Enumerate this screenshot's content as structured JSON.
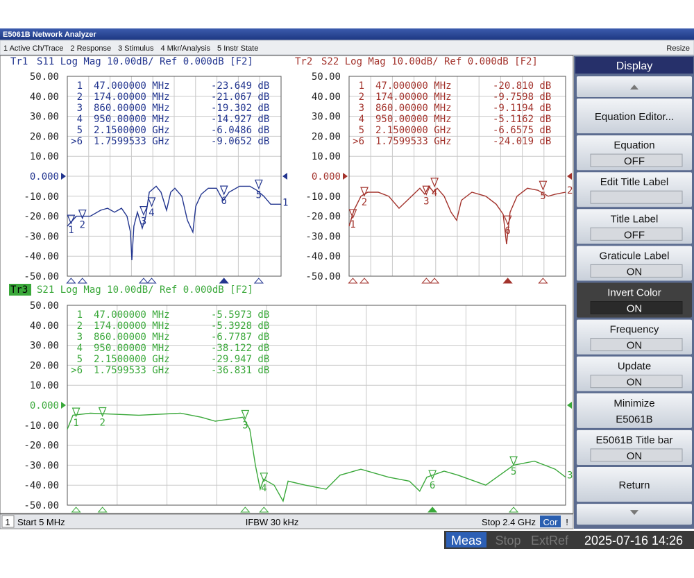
{
  "window": {
    "title": "E5061B Network Analyzer",
    "menu": [
      "1 Active Ch/Trace",
      "2 Response",
      "3 Stimulus",
      "4 Mkr/Analysis",
      "5 Instr State"
    ],
    "resize": "Resize"
  },
  "analyzer": {
    "xlim": [
      5,
      2400
    ],
    "traces": [
      {
        "label": "Tr1",
        "header": "S11 Log Mag 10.00dB/ Ref 0.000dB [F2]",
        "end_label": "1",
        "color": "#22358f",
        "ref": 0,
        "ylim": [
          -50,
          50
        ],
        "yticks": [
          {
            "value": 50,
            "label": "50.00"
          },
          {
            "value": 40,
            "label": "40.00"
          },
          {
            "value": 30,
            "label": "30.00"
          },
          {
            "value": 20,
            "label": "20.00"
          },
          {
            "value": 10,
            "label": "10.00"
          },
          {
            "value": 0,
            "label": "0.000"
          },
          {
            "value": -10,
            "label": "-10.00"
          },
          {
            "value": -20,
            "label": "-20.00"
          },
          {
            "value": -30,
            "label": "-30.00"
          },
          {
            "value": -40,
            "label": "-40.00"
          },
          {
            "value": -50,
            "label": "-50.00"
          }
        ],
        "x": [
          5,
          106,
          262,
          378,
          456,
          534,
          612,
          674,
          713,
          728,
          751,
          790,
          845,
          884,
          923,
          1000,
          1055,
          1117,
          1164,
          1210,
          1288,
          1350,
          1412,
          1444,
          1506,
          1584,
          1677,
          1724,
          1755,
          1817,
          1934,
          2050,
          2128,
          2206,
          2283,
          2400
        ],
        "values": [
          -25,
          -20,
          -20,
          -17,
          -16,
          -18,
          -16,
          -20,
          -28,
          -42,
          -25,
          -18,
          -26,
          -20,
          -8,
          -5,
          -8,
          -17,
          -8,
          -6,
          -10,
          -22,
          -28,
          -15,
          -9,
          -6,
          -6,
          -10,
          -12,
          -8,
          -5,
          -5,
          -7,
          -10,
          -14,
          -14
        ],
        "markers": [
          {
            "row_label": "1",
            "name": "1",
            "stimulus": "47.000000 MHz",
            "response": "-23.649 dB",
            "x": 47,
            "y": -23.649
          },
          {
            "row_label": "2",
            "name": "2",
            "stimulus": "174.00000 MHz",
            "response": "-21.067 dB",
            "x": 174,
            "y": -21.067
          },
          {
            "row_label": "3",
            "name": "3",
            "stimulus": "860.00000 MHz",
            "response": "-19.302 dB",
            "x": 860,
            "y": -19.302
          },
          {
            "row_label": "4",
            "name": "4",
            "stimulus": "950.00000 MHz",
            "response": "-14.927 dB",
            "x": 950,
            "y": -14.927
          },
          {
            "row_label": "5",
            "name": "5",
            "stimulus": "2.1500000 GHz",
            "response": "-6.0486 dB",
            "x": 2150,
            "y": -6.0486
          },
          {
            "row_label": ">6",
            "name": "6",
            "stimulus": "1.7599533 GHz",
            "response": "-9.0652 dB",
            "x": 1759.9533,
            "y": -9.0652,
            "active": true
          }
        ]
      },
      {
        "label": "Tr2",
        "header": "S22 Log Mag 10.00dB/ Ref 0.000dB [F2]",
        "end_label": "2",
        "color": "#a3332c",
        "ref": 0,
        "ylim": [
          -50,
          50
        ],
        "yticks": [
          {
            "value": 50,
            "label": "50.00"
          },
          {
            "value": 40,
            "label": "40.00"
          },
          {
            "value": 30,
            "label": "30.00"
          },
          {
            "value": 20,
            "label": "20.00"
          },
          {
            "value": 10,
            "label": "10.00"
          },
          {
            "value": 0,
            "label": "0.000"
          },
          {
            "value": -10,
            "label": "-10.00"
          },
          {
            "value": -20,
            "label": "-20.00"
          },
          {
            "value": -30,
            "label": "-30.00"
          },
          {
            "value": -40,
            "label": "-40.00"
          },
          {
            "value": -50,
            "label": "-50.00"
          }
        ],
        "x": [
          5,
          59,
          136,
          212,
          327,
          443,
          558,
          673,
          788,
          842,
          888,
          941,
          980,
          1057,
          1133,
          1195,
          1248,
          1364,
          1517,
          1632,
          1709,
          1747,
          1786,
          1863,
          1978,
          2093,
          2208,
          2285,
          2400
        ],
        "values": [
          -25,
          -17,
          -10,
          -8,
          -8,
          -10,
          -16,
          -11,
          -6,
          -9,
          -5,
          -8,
          -6,
          -10,
          -18,
          -22,
          -12,
          -8,
          -10,
          -14,
          -19,
          -34,
          -18,
          -10,
          -6,
          -7,
          -10,
          -9,
          -8
        ],
        "markers": [
          {
            "row_label": "1",
            "name": "1",
            "stimulus": "47.000000 MHz",
            "response": "-20.810 dB",
            "x": 47,
            "y": -20.81
          },
          {
            "row_label": "2",
            "name": "2",
            "stimulus": "174.00000 MHz",
            "response": "-9.7598 dB",
            "x": 174,
            "y": -9.7598
          },
          {
            "row_label": "3",
            "name": "3",
            "stimulus": "860.00000 MHz",
            "response": "-9.1194 dB",
            "x": 860,
            "y": -9.1194
          },
          {
            "row_label": "4",
            "name": "4",
            "stimulus": "950.00000 MHz",
            "response": "-5.1162 dB",
            "x": 950,
            "y": -5.1162
          },
          {
            "row_label": "5",
            "name": "5",
            "stimulus": "2.1500000 GHz",
            "response": "-6.6575 dB",
            "x": 2150,
            "y": -6.6575
          },
          {
            "row_label": ">6",
            "name": "6",
            "stimulus": "1.7599533 GHz",
            "response": "-24.019 dB",
            "x": 1759.9533,
            "y": -24.019,
            "active": true
          }
        ]
      },
      {
        "label": "Tr3",
        "header": "S21 Log Mag 10.00dB/ Ref 0.000dB [F2]",
        "end_label": "3",
        "color": "#3aa83a",
        "ref": 0,
        "ylim": [
          -50,
          50
        ],
        "selected": true,
        "yticks": [
          {
            "value": 50,
            "label": "50.00"
          },
          {
            "value": 40,
            "label": "40.00"
          },
          {
            "value": 30,
            "label": "30.00"
          },
          {
            "value": 20,
            "label": "20.00"
          },
          {
            "value": 10,
            "label": "10.00"
          },
          {
            "value": 0,
            "label": "0.000"
          },
          {
            "value": -10,
            "label": "-10.00"
          },
          {
            "value": -20,
            "label": "-20.00"
          },
          {
            "value": -30,
            "label": "-30.00"
          },
          {
            "value": -40,
            "label": "-40.00"
          },
          {
            "value": -50,
            "label": "-50.00"
          }
        ],
        "x": [
          5,
          32,
          115,
          349,
          549,
          649,
          716,
          782,
          849,
          882,
          909,
          932,
          949,
          999,
          1042,
          1066,
          1149,
          1249,
          1316,
          1416,
          1549,
          1649,
          1699,
          1733,
          1816,
          1883,
          2016,
          2083,
          2150,
          2250,
          2350,
          2400
        ],
        "values": [
          -12,
          -5,
          -4,
          -5,
          -4,
          -6,
          -8,
          -7,
          -6,
          -12,
          -30,
          -42,
          -37,
          -40,
          -48,
          -38,
          -40,
          -42,
          -35,
          -32,
          -36,
          -38,
          -43,
          -36,
          -33,
          -35,
          -40,
          -35,
          -30,
          -28,
          -32,
          -36
        ],
        "markers": [
          {
            "row_label": "1",
            "name": "1",
            "stimulus": "47.000000 MHz",
            "response": "-5.5973 dB",
            "x": 47,
            "y": -5.5973
          },
          {
            "row_label": "2",
            "name": "2",
            "stimulus": "174.00000 MHz",
            "response": "-5.3928 dB",
            "x": 174,
            "y": -5.3928
          },
          {
            "row_label": "3",
            "name": "3",
            "stimulus": "860.00000 MHz",
            "response": "-6.7787 dB",
            "x": 860,
            "y": -6.7787
          },
          {
            "row_label": "4",
            "name": "4",
            "stimulus": "950.00000 MHz",
            "response": "-38.122 dB",
            "x": 950,
            "y": -38.122
          },
          {
            "row_label": "5",
            "name": "5",
            "stimulus": "2.1500000 GHz",
            "response": "-29.947 dB",
            "x": 2150,
            "y": -29.947
          },
          {
            "row_label": ">6",
            "name": "6",
            "stimulus": "1.7599533 GHz",
            "response": "-36.831 dB",
            "x": 1759.9533,
            "y": -36.831,
            "active": true
          }
        ]
      }
    ]
  },
  "softkeys": {
    "title": "Display",
    "keys": [
      {
        "label": "Equation Editor..."
      },
      {
        "label": "Equation",
        "value": "OFF"
      },
      {
        "label": "Edit Title Label",
        "field": true
      },
      {
        "label": "Title Label",
        "value": "OFF"
      },
      {
        "label": "Graticule Label",
        "value": "ON"
      },
      {
        "label": "Invert Color",
        "value": "ON",
        "selected": true
      },
      {
        "label": "Frequency",
        "value": "ON"
      },
      {
        "label": "Update",
        "value": "ON"
      },
      {
        "label": "Minimize",
        "value": "E5061B",
        "plain": true
      },
      {
        "label": "E5061B Title bar",
        "value": "ON"
      },
      {
        "label": "Return"
      }
    ]
  },
  "status": {
    "channel": "1",
    "start": "Start 5 MHz",
    "ifbw": "IFBW 30 kHz",
    "stop": "Stop 2.4 GHz",
    "cor": "Cor",
    "alert": "!"
  },
  "taskbar": {
    "items": [
      "Meas",
      "Stop",
      "ExtRef"
    ],
    "clock": "2025-07-16 14:26"
  }
}
